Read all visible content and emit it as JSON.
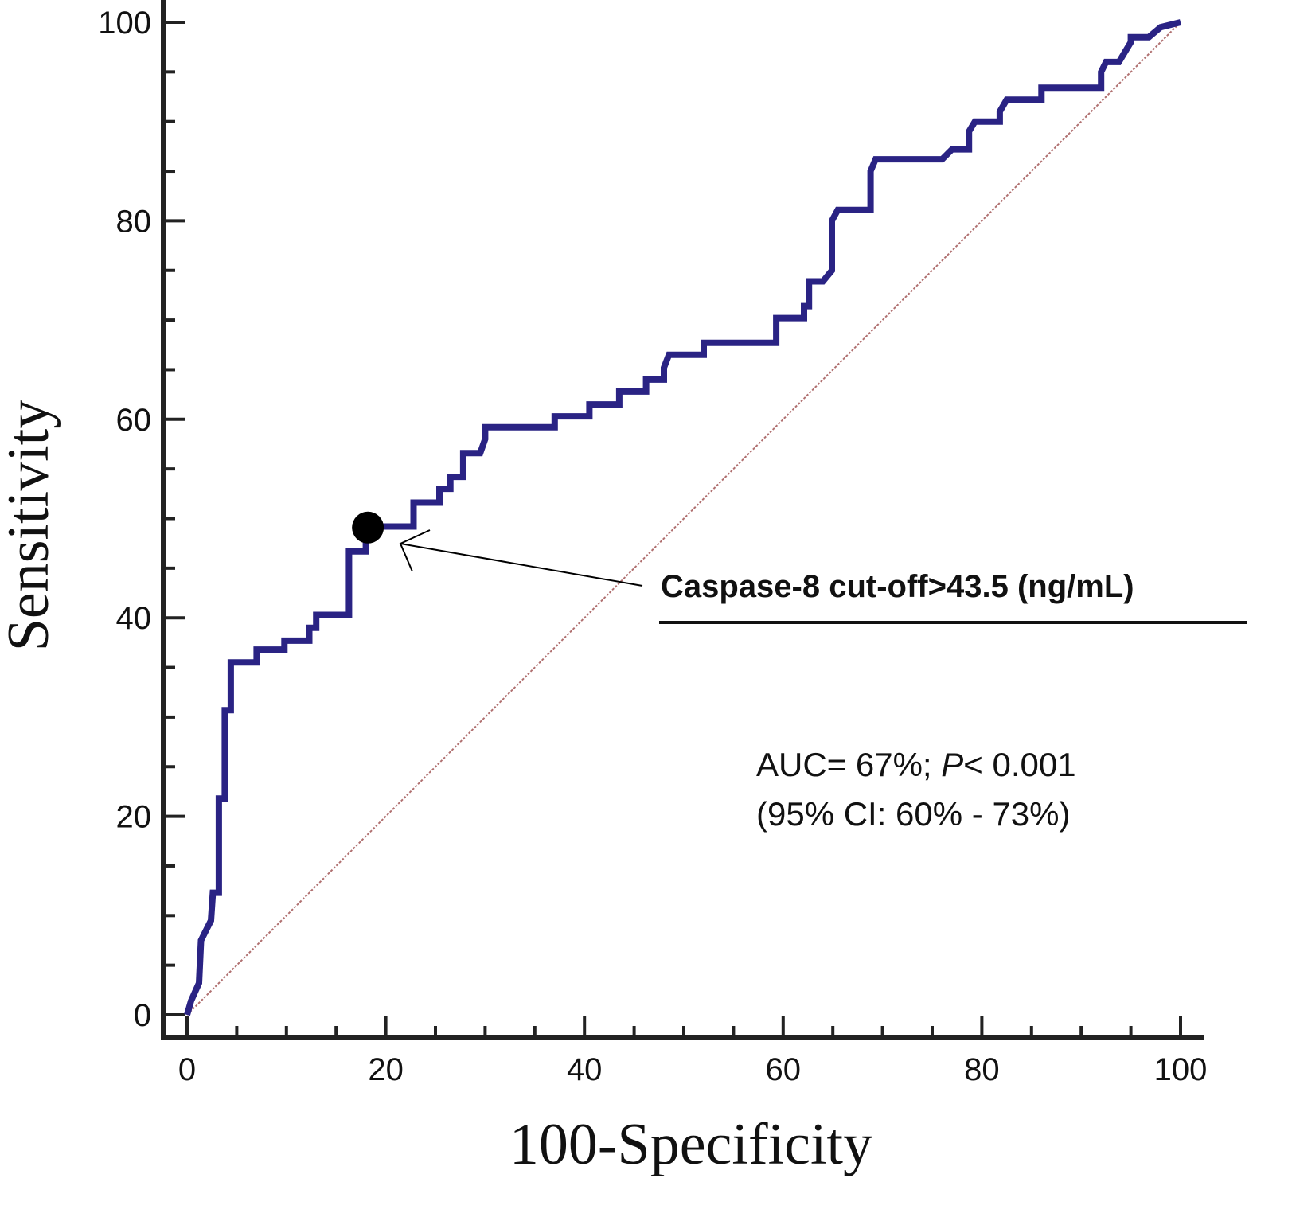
{
  "chart_data": {
    "type": "line",
    "title": "",
    "xlabel": "100-Specificity",
    "ylabel": "Sensitivity",
    "xlim": [
      0,
      100
    ],
    "ylim": [
      0,
      100
    ],
    "xticks": [
      "0",
      "20",
      "40",
      "60",
      "80",
      "100"
    ],
    "yticks": [
      "0",
      "20",
      "40",
      "60",
      "80",
      "100"
    ],
    "grid": false,
    "colors": {
      "roc": "#2a2384",
      "reference": "#b07070",
      "marker": "#000000"
    },
    "series": [
      {
        "type": "step-line",
        "x": [
          0,
          0.4,
          1.2,
          1.4,
          2.4,
          2.6,
          3.2,
          3.2,
          3.8,
          3.8,
          4.4,
          4.4,
          7,
          7,
          9.8,
          9.8,
          12.3,
          12.3,
          13,
          13,
          16.3,
          16.3,
          18,
          18,
          22.8,
          22.8,
          25.4,
          25.4,
          26.5,
          26.5,
          27.8,
          27.8,
          29.5,
          30,
          30,
          37,
          37,
          40.5,
          40.5,
          43.5,
          43.5,
          46.2,
          46.2,
          48,
          48,
          48.5,
          52,
          52,
          59.3,
          59.3,
          62.1,
          62.1,
          62.6,
          62.6,
          64,
          64.9,
          64.9,
          65.5,
          68.8,
          68.8,
          69.3,
          76,
          77,
          78.7,
          78.7,
          79.3,
          81.8,
          81.8,
          82.5,
          86,
          86,
          92,
          92,
          92.5,
          93.8,
          95,
          95,
          96.8,
          98,
          100
        ],
        "y": [
          0,
          1.4,
          3.2,
          7.5,
          9.5,
          12.3,
          12.3,
          21.8,
          21.8,
          30.7,
          30.7,
          35.5,
          35.5,
          36.8,
          36.8,
          37.7,
          37.7,
          39,
          39,
          40.3,
          40.3,
          46.7,
          46.7,
          49.2,
          49.2,
          51.6,
          51.6,
          53,
          53,
          54.2,
          54.2,
          56.6,
          56.6,
          58,
          59.2,
          59.2,
          60.3,
          60.3,
          61.5,
          61.5,
          62.8,
          62.8,
          64,
          64,
          65.2,
          66.5,
          66.5,
          67.7,
          67.7,
          70.2,
          70.2,
          71.4,
          71.4,
          73.9,
          73.9,
          75,
          80,
          81.1,
          81.1,
          85,
          86.2,
          86.2,
          87.2,
          87.2,
          89,
          90,
          90,
          91,
          92.2,
          92.2,
          93.4,
          93.4,
          95,
          96,
          96,
          98,
          98.5,
          98.5,
          99.5,
          100
        ]
      },
      {
        "type": "reference-diagonal",
        "x": [
          0,
          100
        ],
        "y": [
          0,
          100
        ]
      }
    ],
    "cutoff_point": {
      "x": 18.2,
      "y": 49.1,
      "label": "Caspase-8 cut-off>43.5 (ng/mL)"
    },
    "annotations": {
      "auc_prefix": "AUC= 67%; ",
      "auc_p": "P",
      "auc_suffix": "< 0.001",
      "ci": "(95% CI: 60% - 73%)"
    }
  }
}
